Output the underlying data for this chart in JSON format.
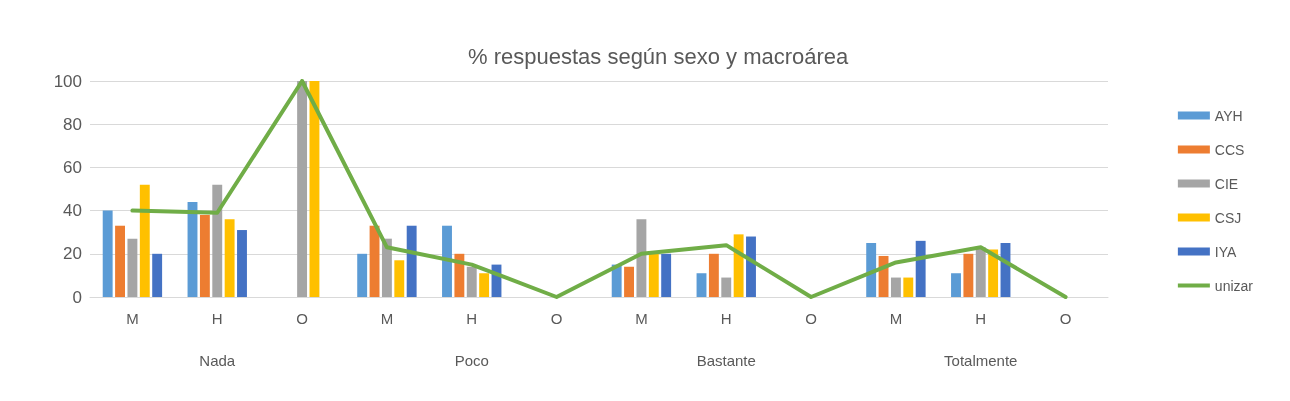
{
  "chart_data": {
    "type": "bar",
    "title": "% respuestas según sexo y macroárea",
    "categories": [
      "M",
      "H",
      "O",
      "M",
      "H",
      "O",
      "M",
      "H",
      "O",
      "M",
      "H",
      "O"
    ],
    "annotations": [
      "Nada",
      "Poco",
      "Bastante",
      "Totalmente"
    ],
    "series": [
      {
        "name": "AYH",
        "color": "#5b9bd5",
        "values": [
          40,
          44,
          0,
          20,
          33,
          0,
          15,
          11,
          0,
          25,
          11,
          0
        ]
      },
      {
        "name": "CCS",
        "color": "#ed7d31",
        "values": [
          33,
          38,
          0,
          33,
          20,
          0,
          14,
          20,
          0,
          19,
          20,
          0
        ]
      },
      {
        "name": "CIE",
        "color": "#a5a5a5",
        "values": [
          27,
          52,
          100,
          27,
          14,
          0,
          36,
          9,
          0,
          9,
          23,
          0
        ]
      },
      {
        "name": "CSJ",
        "color": "#ffc000",
        "values": [
          52,
          36,
          100,
          17,
          11,
          0,
          20,
          29,
          0,
          9,
          22,
          0
        ]
      },
      {
        "name": "IYA",
        "color": "#4472c4",
        "values": [
          20,
          31,
          0,
          33,
          15,
          0,
          20,
          28,
          0,
          26,
          25,
          0
        ]
      },
      {
        "name": "unizar",
        "type": "line",
        "color": "#70ad47",
        "values": [
          40,
          39,
          100,
          23,
          15,
          0,
          20,
          24,
          0,
          16,
          23,
          0
        ]
      }
    ],
    "ylim": [
      0,
      100
    ],
    "yticks": [
      0,
      20,
      40,
      60,
      80,
      100
    ],
    "grid": "y",
    "legend": "right",
    "marker": "none",
    "line_style": "solid"
  }
}
